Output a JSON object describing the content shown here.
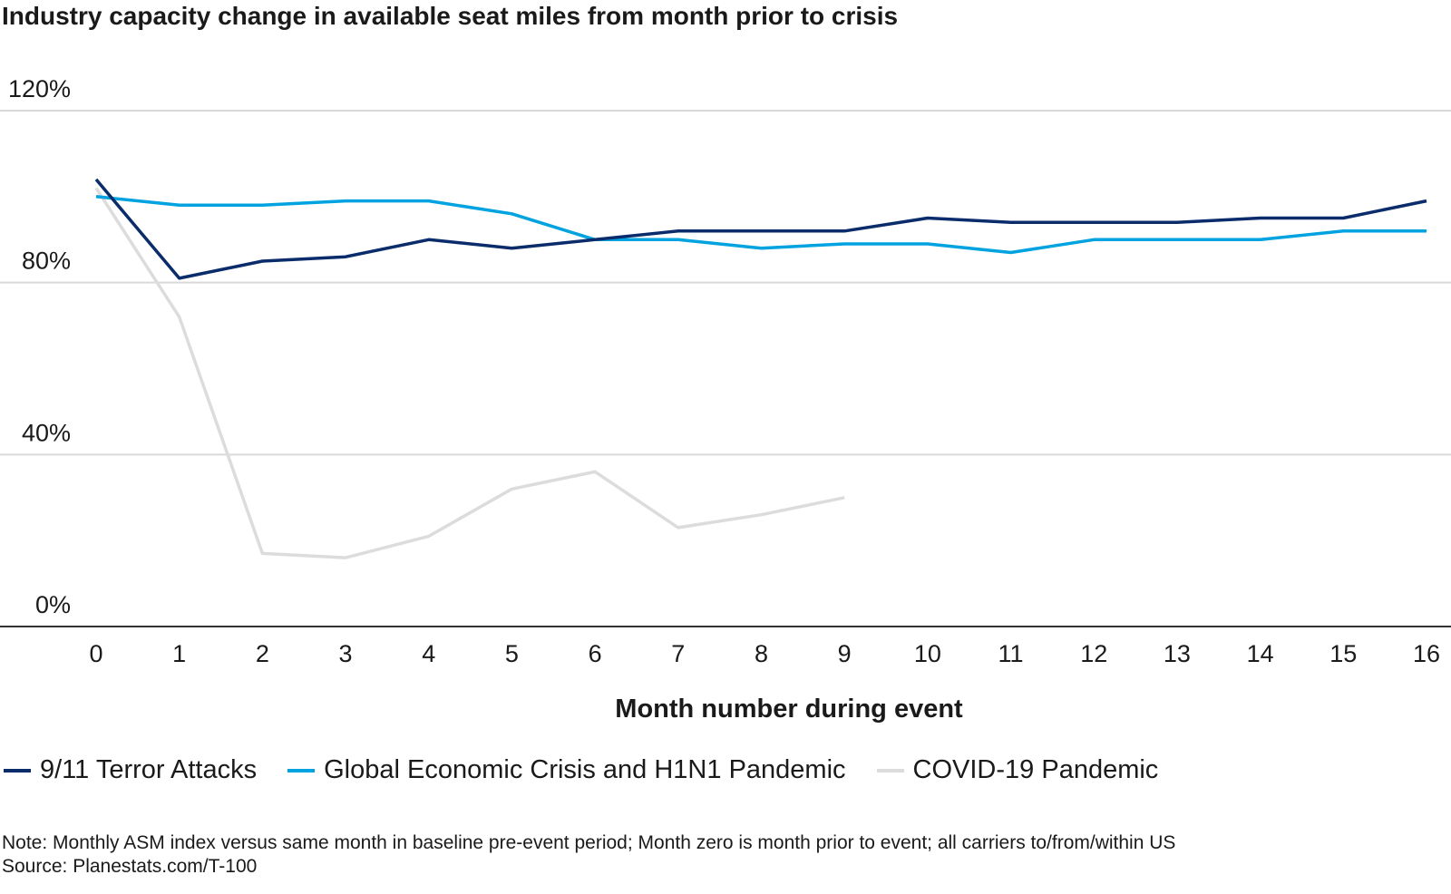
{
  "chart_data": {
    "type": "line",
    "title": "Industry capacity change in available seat miles from month prior to crisis",
    "xlabel": "Month number during event",
    "ylabel": "",
    "x": [
      0,
      1,
      2,
      3,
      4,
      5,
      6,
      7,
      8,
      9,
      10,
      11,
      12,
      13,
      14,
      15,
      16
    ],
    "xlim": [
      0,
      16
    ],
    "ylim": [
      0,
      120
    ],
    "y_ticks": [
      0,
      40,
      80,
      120
    ],
    "y_tick_labels": [
      "0%",
      "40%",
      "80%",
      "120%"
    ],
    "x_tick_labels": [
      "0",
      "1",
      "2",
      "3",
      "4",
      "5",
      "6",
      "7",
      "8",
      "9",
      "10",
      "11",
      "12",
      "13",
      "14",
      "15",
      "16"
    ],
    "grid": "horizontal",
    "legend_position": "bottom",
    "series": [
      {
        "name": "9/11 Terror Attacks",
        "color": "#0b2c6b",
        "values": [
          104,
          81,
          85,
          86,
          90,
          88,
          90,
          92,
          92,
          92,
          95,
          94,
          94,
          94,
          95,
          95,
          99
        ]
      },
      {
        "name": "Global Economic Crisis and H1N1 Pandemic",
        "color": "#00a3e0",
        "values": [
          100,
          98,
          98,
          99,
          99,
          96,
          90,
          90,
          88,
          89,
          89,
          87,
          90,
          90,
          90,
          92,
          92
        ]
      },
      {
        "name": "COVID-19 Pandemic",
        "color": "#dcdcdc",
        "values": [
          102,
          72,
          17,
          16,
          21,
          32,
          36,
          23,
          26,
          30,
          null,
          null,
          null,
          null,
          null,
          null,
          null
        ]
      }
    ]
  },
  "notes": {
    "line1": "Note: Monthly ASM index versus same month in baseline pre-event period; Month zero is month prior to event; all carriers to/from/within US",
    "line2": "Source: Planestats.com/T-100"
  }
}
